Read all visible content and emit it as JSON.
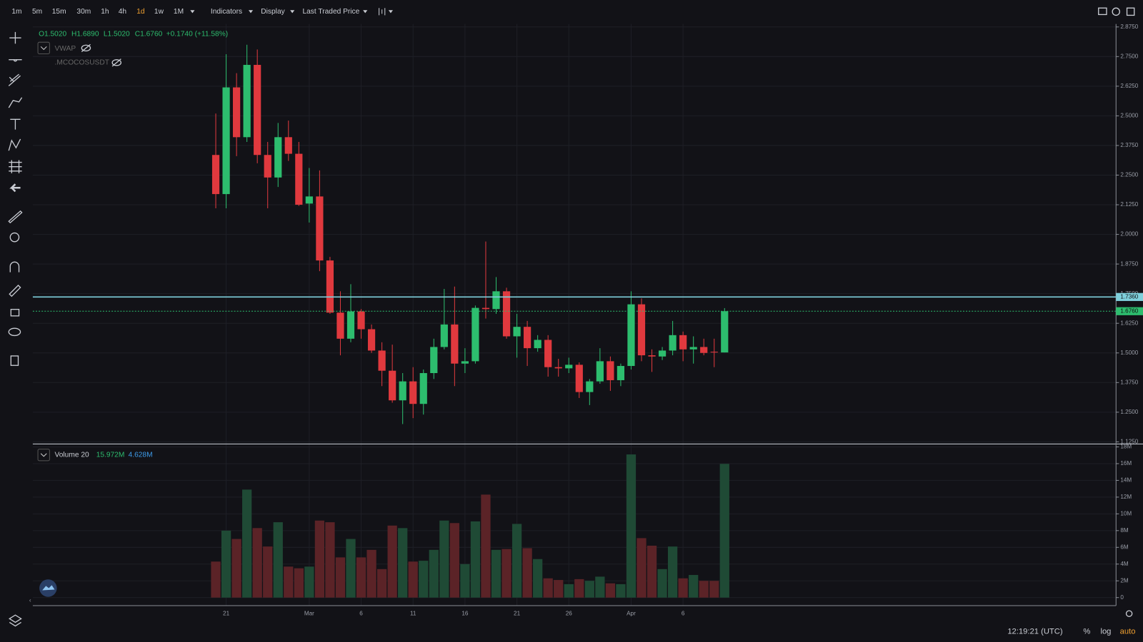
{
  "toolbar": {
    "intervals": [
      "1m",
      "5m",
      "15m",
      "30m",
      "1h",
      "4h",
      "1d",
      "1w",
      "1M"
    ],
    "active_interval": 6,
    "menus": [
      "Indicators",
      "Display",
      "Last Traded Price"
    ]
  },
  "legend": {
    "ohlc": [
      "O1.5020",
      "H1.6890",
      "L1.5020",
      "C1.6760",
      "+0.1740 (+11.58%)"
    ],
    "indicators": [
      "VWAP",
      ".MCOCOSUSDT"
    ]
  },
  "volume_legend": {
    "name": "Volume 20",
    "values": [
      "15.972M",
      "4.628M"
    ]
  },
  "footer": {
    "time": "12:19:21 (UTC)",
    "options": [
      "%",
      "log",
      "auto"
    ]
  },
  "chart_data": [
    {
      "type": "candlestick",
      "categories": [
        null,
        "21",
        null,
        null,
        null,
        null,
        null,
        null,
        null,
        "Mar",
        null,
        null,
        null,
        null,
        "6",
        null,
        null,
        null,
        null,
        "11",
        null,
        null,
        null,
        null,
        "16",
        null,
        null,
        null,
        null,
        "21",
        null,
        null,
        null,
        null,
        "26",
        null,
        null,
        null,
        null,
        null,
        "Apr",
        null,
        null,
        null,
        null,
        "6",
        null,
        null,
        null,
        null
      ],
      "open": [
        2.335,
        2.17,
        2.62,
        2.41,
        2.715,
        2.335,
        2.24,
        2.41,
        2.34,
        2.13,
        2.16,
        1.89,
        1.67,
        1.56,
        1.675,
        1.6,
        1.51,
        1.425,
        1.3,
        1.38,
        1.285,
        1.415,
        1.525,
        1.62,
        1.455,
        1.465,
        1.69,
        1.685,
        1.76,
        1.57,
        1.61,
        1.52,
        1.555,
        1.44,
        1.435,
        1.45,
        1.335,
        1.38,
        1.465,
        1.385,
        1.445,
        1.705,
        1.49,
        1.485,
        1.51,
        1.575,
        1.515,
        1.525,
        1.505,
        1.502
      ],
      "high": [
        2.51,
        2.76,
        2.68,
        2.8,
        2.78,
        2.39,
        2.47,
        2.48,
        2.39,
        2.28,
        2.27,
        1.905,
        1.76,
        1.79,
        1.685,
        1.62,
        1.545,
        1.535,
        1.415,
        1.44,
        1.43,
        1.56,
        1.77,
        1.78,
        1.52,
        1.7,
        1.97,
        1.82,
        1.775,
        1.665,
        1.635,
        1.575,
        1.575,
        1.475,
        1.48,
        1.46,
        1.39,
        1.52,
        1.485,
        1.455,
        1.76,
        1.73,
        1.515,
        1.525,
        1.635,
        1.59,
        1.57,
        1.56,
        1.56,
        1.689
      ],
      "low": [
        2.11,
        2.11,
        2.33,
        2.39,
        2.3,
        2.11,
        2.2,
        2.31,
        2.12,
        2.05,
        1.845,
        1.665,
        1.49,
        1.545,
        1.56,
        1.5,
        1.36,
        1.29,
        1.2,
        1.225,
        1.24,
        1.39,
        1.515,
        1.36,
        1.415,
        1.455,
        1.645,
        1.665,
        1.56,
        1.48,
        1.445,
        1.505,
        1.4,
        1.4,
        1.415,
        1.31,
        1.28,
        1.37,
        1.34,
        1.36,
        1.43,
        1.465,
        1.42,
        1.47,
        1.49,
        1.465,
        1.455,
        1.49,
        1.44,
        1.502
      ],
      "close": [
        2.17,
        2.62,
        2.41,
        2.715,
        2.335,
        2.24,
        2.41,
        2.34,
        2.125,
        2.16,
        1.89,
        1.67,
        1.56,
        1.675,
        1.6,
        1.51,
        1.425,
        1.3,
        1.38,
        1.285,
        1.415,
        1.525,
        1.62,
        1.455,
        1.465,
        1.69,
        1.685,
        1.76,
        1.57,
        1.61,
        1.52,
        1.555,
        1.44,
        1.435,
        1.45,
        1.335,
        1.38,
        1.465,
        1.385,
        1.445,
        1.705,
        1.49,
        1.485,
        1.51,
        1.575,
        1.515,
        1.525,
        1.5,
        1.502,
        1.676
      ],
      "up_color": "#2dbd6e",
      "down_color": "#e0393e",
      "ylim": [
        1.1158,
        2.8873
      ],
      "yticks": [
        {
          "value": 2.875,
          "label": "2.8750"
        },
        {
          "value": 2.75,
          "label": "2.7500"
        },
        {
          "value": 2.625,
          "label": "2.6250"
        },
        {
          "value": 2.5,
          "label": "2.5000"
        },
        {
          "value": 2.375,
          "label": "2.3750"
        },
        {
          "value": 2.25,
          "label": "2.2500"
        },
        {
          "value": 2.125,
          "label": "2.1250"
        },
        {
          "value": 2.0,
          "label": "2.0000"
        },
        {
          "value": 1.875,
          "label": "1.8750"
        },
        {
          "value": 1.75,
          "label": "1.7500"
        },
        {
          "value": 1.625,
          "label": "1.6250"
        },
        {
          "value": 1.5,
          "label": "1.5000"
        },
        {
          "value": 1.375,
          "label": "1.3750"
        },
        {
          "value": 1.25,
          "label": "1.2500"
        },
        {
          "value": 1.125,
          "label": "1.1250"
        }
      ],
      "price_lines": [
        {
          "value": 1.736,
          "label": "1.7360",
          "color": "#7fd0dc",
          "style": "solid"
        },
        {
          "value": 1.676,
          "label": "1.6760",
          "color": "#2dbd6e",
          "style": "dashed"
        }
      ],
      "grid": true
    },
    {
      "type": "bar",
      "values": [
        4.3,
        8.0,
        7.0,
        12.9,
        8.3,
        6.1,
        9.0,
        3.7,
        3.5,
        3.7,
        9.2,
        9.0,
        4.8,
        7.0,
        4.8,
        5.7,
        3.4,
        8.6,
        8.3,
        4.3,
        4.4,
        5.7,
        9.2,
        8.9,
        4.0,
        9.1,
        12.3,
        5.7,
        5.8,
        8.8,
        5.9,
        4.6,
        2.3,
        2.1,
        1.6,
        2.2,
        2.0,
        2.5,
        1.7,
        1.6,
        17.1,
        7.1,
        6.2,
        3.4,
        6.1,
        2.3,
        2.7,
        2.0,
        2.0,
        15.972
      ],
      "up_color": "#1f4a35",
      "down_color": "#5b2327",
      "ylim": [
        -0.96,
        18.17
      ],
      "yticks": [
        0,
        {
          "value": 2,
          "label": "2M"
        },
        {
          "value": 4,
          "label": "4M"
        },
        {
          "value": 6,
          "label": "6M"
        },
        {
          "value": 8,
          "label": "8M"
        },
        {
          "value": 10,
          "label": "10M"
        },
        {
          "value": 12,
          "label": "12M"
        },
        {
          "value": 14,
          "label": "14M"
        },
        {
          "value": 16,
          "label": "16M"
        },
        {
          "value": 18,
          "label": "18M"
        }
      ],
      "grid": true
    }
  ]
}
